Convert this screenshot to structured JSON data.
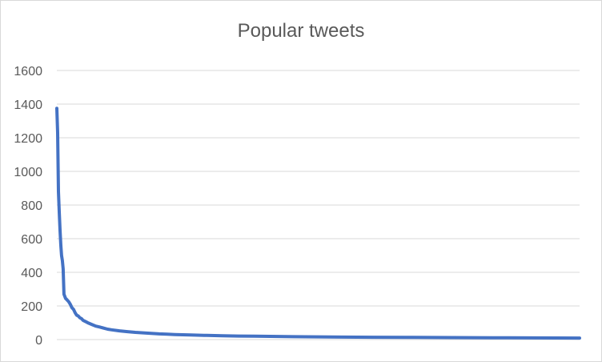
{
  "chart_data": {
    "type": "line",
    "title": "Popular tweets",
    "xlabel": "",
    "ylabel": "",
    "ylim": [
      0,
      1600
    ],
    "yticks": [
      0,
      200,
      400,
      600,
      800,
      1000,
      1200,
      1400,
      1600
    ],
    "ytick_labels": [
      "0",
      "200",
      "400",
      "600",
      "800",
      "1000",
      "1200",
      "1400",
      "1600"
    ],
    "grid": true,
    "legend": "none",
    "color": "#4472c4",
    "series": [
      {
        "x": [
          1,
          2,
          3,
          4,
          5,
          6,
          7,
          8,
          9,
          10,
          12,
          14,
          16,
          18,
          20,
          22,
          24,
          26,
          28,
          30,
          32,
          34,
          36,
          38,
          40,
          45,
          50,
          55,
          60,
          65,
          70,
          80,
          90,
          100,
          110,
          120,
          130,
          140,
          150,
          170,
          190,
          210,
          230,
          250,
          270,
          300,
          330,
          360,
          400,
          450,
          500,
          550,
          600,
          660
        ],
        "values": [
          1375,
          1230,
          880,
          760,
          650,
          560,
          500,
          470,
          420,
          270,
          245,
          235,
          225,
          210,
          190,
          180,
          160,
          145,
          140,
          130,
          125,
          115,
          110,
          105,
          100,
          90,
          80,
          75,
          68,
          62,
          58,
          52,
          47,
          43,
          40,
          37,
          34,
          32,
          30,
          27,
          25,
          23,
          21,
          20,
          19,
          17,
          16,
          15,
          14,
          13,
          12,
          11,
          10,
          9
        ]
      }
    ]
  }
}
